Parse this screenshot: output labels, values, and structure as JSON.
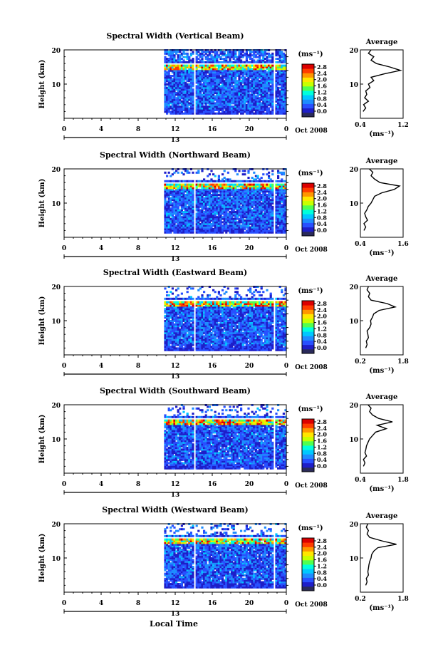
{
  "figure": {
    "xlabel": "Local Time",
    "date_label": "Oct 2008",
    "day_label": "13"
  },
  "colorbar": {
    "unit": "(ms⁻¹)",
    "ticks": [
      "0.0",
      "0.4",
      "0.8",
      "1.2",
      "1.6",
      "2.0",
      "2.4",
      "2.8"
    ],
    "colors": [
      "#2a2a5a",
      "#1e1ec8",
      "#2850ff",
      "#1e8cff",
      "#00c8ff",
      "#00ffdc",
      "#50ff50",
      "#c8ff00",
      "#ffe600",
      "#ff9600",
      "#ff3c00",
      "#dc0000"
    ]
  },
  "chart_data": [
    {
      "type": "heatmap",
      "title": "Spectral Width (Vertical Beam)",
      "ylabel": "Height (km)",
      "x_ticks": [
        "0",
        "4",
        "8",
        "12",
        "16",
        "20",
        "0"
      ],
      "xlim": [
        0,
        24
      ],
      "ylim": [
        0,
        20
      ],
      "y_ticks": [
        "10",
        "20"
      ],
      "data_start_hour": 10.8,
      "data_gaps_hours": [
        14.0,
        22.6
      ],
      "tropopause_km": 14.6,
      "profile": {
        "title": "Average",
        "xlabel": "(ms⁻¹)",
        "x_ticks": [
          "0.4",
          "1.2"
        ],
        "xlim": [
          0.4,
          1.2
        ],
        "y_ticks": [
          "10",
          "20"
        ],
        "heights_km": [
          2,
          3,
          4,
          5,
          6,
          7,
          8,
          9,
          10,
          11,
          12,
          13,
          14,
          15,
          16,
          17,
          18,
          19,
          20
        ],
        "values": [
          0.45,
          0.5,
          0.46,
          0.55,
          0.48,
          0.52,
          0.5,
          0.58,
          0.55,
          0.65,
          0.6,
          0.85,
          1.15,
          0.95,
          0.7,
          0.6,
          0.65,
          0.55,
          0.6
        ]
      }
    },
    {
      "type": "heatmap",
      "title": "Spectral Width (Northward Beam)",
      "ylabel": "Height (km)",
      "x_ticks": [
        "0",
        "4",
        "8",
        "12",
        "16",
        "20",
        "0"
      ],
      "xlim": [
        0,
        24
      ],
      "ylim": [
        0,
        20
      ],
      "y_ticks": [
        "10",
        "20"
      ],
      "data_start_hour": 10.8,
      "data_gaps_hours": [
        14.0,
        22.6
      ],
      "tropopause_km": 14.6,
      "profile": {
        "title": "Average",
        "xlabel": "(ms⁻¹)",
        "x_ticks": [
          "0.4",
          "1.6"
        ],
        "xlim": [
          0.4,
          1.6
        ],
        "y_ticks": [
          "10",
          "20"
        ],
        "heights_km": [
          2,
          3,
          4,
          5,
          6,
          7,
          8,
          9,
          10,
          11,
          12,
          13,
          14,
          15,
          16,
          17,
          18,
          19,
          20
        ],
        "values": [
          0.5,
          0.55,
          0.5,
          0.6,
          0.55,
          0.52,
          0.58,
          0.62,
          0.7,
          0.75,
          0.8,
          1.0,
          1.35,
          1.5,
          0.95,
          0.8,
          0.7,
          0.75,
          0.65
        ]
      }
    },
    {
      "type": "heatmap",
      "title": "Spectral Width (Eastward Beam)",
      "ylabel": "Height (km)",
      "x_ticks": [
        "0",
        "4",
        "8",
        "12",
        "16",
        "20",
        "0"
      ],
      "xlim": [
        0,
        24
      ],
      "ylim": [
        0,
        20
      ],
      "y_ticks": [
        "10",
        "20"
      ],
      "data_start_hour": 10.8,
      "data_gaps_hours": [
        14.0,
        22.6
      ],
      "tropopause_km": 14.6,
      "profile": {
        "title": "Average",
        "xlabel": "(ms⁻¹)",
        "x_ticks": [
          "0.2",
          "1.8"
        ],
        "xlim": [
          0.2,
          1.8
        ],
        "y_ticks": [
          "10",
          "20"
        ],
        "heights_km": [
          2,
          3,
          4,
          5,
          6,
          7,
          8,
          9,
          10,
          11,
          12,
          13,
          14,
          15,
          16,
          17,
          18,
          19,
          20
        ],
        "values": [
          0.4,
          0.45,
          0.42,
          0.5,
          0.48,
          0.45,
          0.55,
          0.6,
          0.58,
          0.65,
          0.7,
          0.9,
          1.5,
          1.2,
          0.6,
          0.5,
          0.55,
          0.45,
          0.5
        ]
      }
    },
    {
      "type": "heatmap",
      "title": "Spectral Width (Southward Beam)",
      "ylabel": "Height (km)",
      "x_ticks": [
        "0",
        "4",
        "8",
        "12",
        "16",
        "20",
        "0"
      ],
      "xlim": [
        0,
        24
      ],
      "ylim": [
        0,
        20
      ],
      "y_ticks": [
        "10",
        "20"
      ],
      "data_start_hour": 10.8,
      "data_gaps_hours": [
        14.0,
        22.6
      ],
      "tropopause_km": 14.6,
      "profile": {
        "title": "Average",
        "xlabel": "(ms⁻¹)",
        "x_ticks": [
          "0.4",
          "1.8"
        ],
        "xlim": [
          0.4,
          1.8
        ],
        "y_ticks": [
          "10",
          "20"
        ],
        "heights_km": [
          2,
          3,
          4,
          5,
          6,
          7,
          8,
          9,
          10,
          11,
          12,
          13,
          14,
          15,
          16,
          17,
          18,
          19,
          20
        ],
        "values": [
          0.5,
          0.55,
          0.5,
          0.6,
          0.55,
          0.58,
          0.6,
          0.65,
          0.7,
          0.8,
          0.9,
          1.25,
          0.95,
          1.45,
          1.0,
          0.8,
          0.7,
          0.75,
          0.65
        ]
      }
    },
    {
      "type": "heatmap",
      "title": "Spectral Width (Westward Beam)",
      "ylabel": "Height (km)",
      "x_ticks": [
        "0",
        "4",
        "8",
        "12",
        "16",
        "20",
        "0"
      ],
      "xlim": [
        0,
        24
      ],
      "ylim": [
        0,
        20
      ],
      "y_ticks": [
        "10",
        "20"
      ],
      "data_start_hour": 10.8,
      "data_gaps_hours": [
        14.0,
        22.6
      ],
      "tropopause_km": 14.6,
      "profile": {
        "title": "Average",
        "xlabel": "(ms⁻¹)",
        "x_ticks": [
          "0.2",
          "1.8"
        ],
        "xlim": [
          0.2,
          1.8
        ],
        "y_ticks": [
          "10",
          "20"
        ],
        "heights_km": [
          2,
          3,
          4,
          5,
          6,
          7,
          8,
          9,
          10,
          11,
          12,
          13,
          14,
          15,
          16,
          17,
          18,
          19,
          20
        ],
        "values": [
          0.4,
          0.45,
          0.42,
          0.5,
          0.48,
          0.5,
          0.52,
          0.55,
          0.6,
          0.62,
          0.7,
          0.85,
          1.55,
          1.0,
          0.55,
          0.45,
          0.5,
          0.42,
          0.48
        ]
      }
    }
  ]
}
